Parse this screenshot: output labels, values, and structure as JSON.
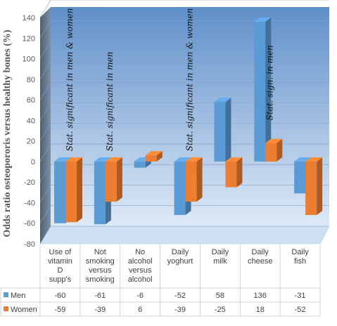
{
  "chart_data": {
    "type": "bar",
    "categories": [
      [
        "Use of",
        "vitamin",
        "D",
        "supp's"
      ],
      [
        "Not",
        "smoking",
        "versus",
        "smoking"
      ],
      [
        "No",
        "alcohol",
        "versus",
        "alcohol"
      ],
      [
        "Daily",
        "yoghurt"
      ],
      [
        "Daily",
        "milk"
      ],
      [
        "Daily",
        "cheese"
      ],
      [
        "Daily",
        "fish"
      ]
    ],
    "series": [
      {
        "name": "Men",
        "values": [
          -60,
          -61,
          -6,
          -52,
          58,
          136,
          -31
        ],
        "color": "#5b9bd5"
      },
      {
        "name": "Women",
        "values": [
          -59,
          -39,
          6,
          -39,
          -25,
          18,
          -52
        ],
        "color": "#ed7d31"
      }
    ],
    "ylabel": "Odds ratio osteopororis versus healthy bones (%)",
    "ylim": [
      -80,
      140
    ],
    "yticks": [
      -80,
      -60,
      -40,
      -20,
      0,
      20,
      40,
      60,
      80,
      100,
      120,
      140
    ],
    "annotations": [
      "Stat. significant in men & women",
      "Stat. significant in men",
      "Stat. significant in men & women",
      "Stat. sign. in men"
    ],
    "grid": true,
    "legend_placement": "data-table"
  },
  "colors": {
    "wall_top": "#5f8fc9",
    "wall_bottom": "#dfeaf7",
    "floor": "#cfdff2",
    "grid": "#7f9fc6"
  }
}
